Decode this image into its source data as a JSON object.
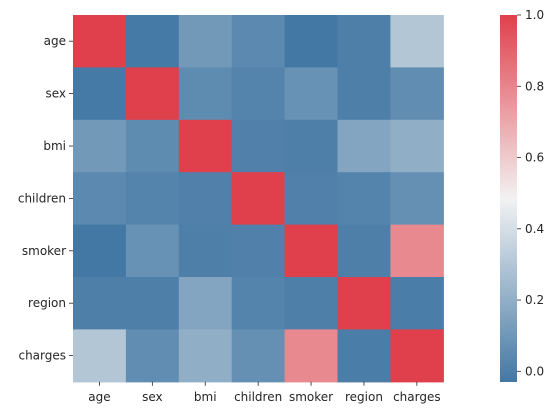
{
  "chart_data": {
    "type": "heatmap",
    "title": "",
    "xlabel": "",
    "ylabel": "",
    "row_labels": [
      "age",
      "sex",
      "bmi",
      "children",
      "smoker",
      "region",
      "charges"
    ],
    "col_labels": [
      "age",
      "sex",
      "bmi",
      "children",
      "smoker",
      "region",
      "charges"
    ],
    "values": [
      [
        1.0,
        -0.02,
        0.11,
        0.04,
        -0.03,
        0.0,
        0.3
      ],
      [
        -0.02,
        1.0,
        0.05,
        0.02,
        0.08,
        0.0,
        0.06
      ],
      [
        0.11,
        0.05,
        1.0,
        0.01,
        0.0,
        0.16,
        0.2
      ],
      [
        0.04,
        0.02,
        0.01,
        1.0,
        0.01,
        0.02,
        0.07
      ],
      [
        -0.03,
        0.08,
        0.0,
        0.01,
        1.0,
        0.0,
        0.79
      ],
      [
        0.0,
        0.0,
        0.16,
        0.02,
        0.0,
        1.0,
        -0.01
      ],
      [
        0.3,
        0.06,
        0.2,
        0.07,
        0.79,
        -0.01,
        1.0
      ]
    ],
    "colorbar": {
      "min": -0.03,
      "max": 1.0,
      "ticks": [
        "0.0",
        "0.2",
        "0.4",
        "0.6",
        "0.8",
        "1.0"
      ],
      "tick_values": [
        0.0,
        0.2,
        0.4,
        0.6,
        0.8,
        1.0
      ]
    },
    "colors": {
      "low": "#4378a4",
      "mid": "#f2f2f2",
      "high": "#e0404b"
    }
  }
}
